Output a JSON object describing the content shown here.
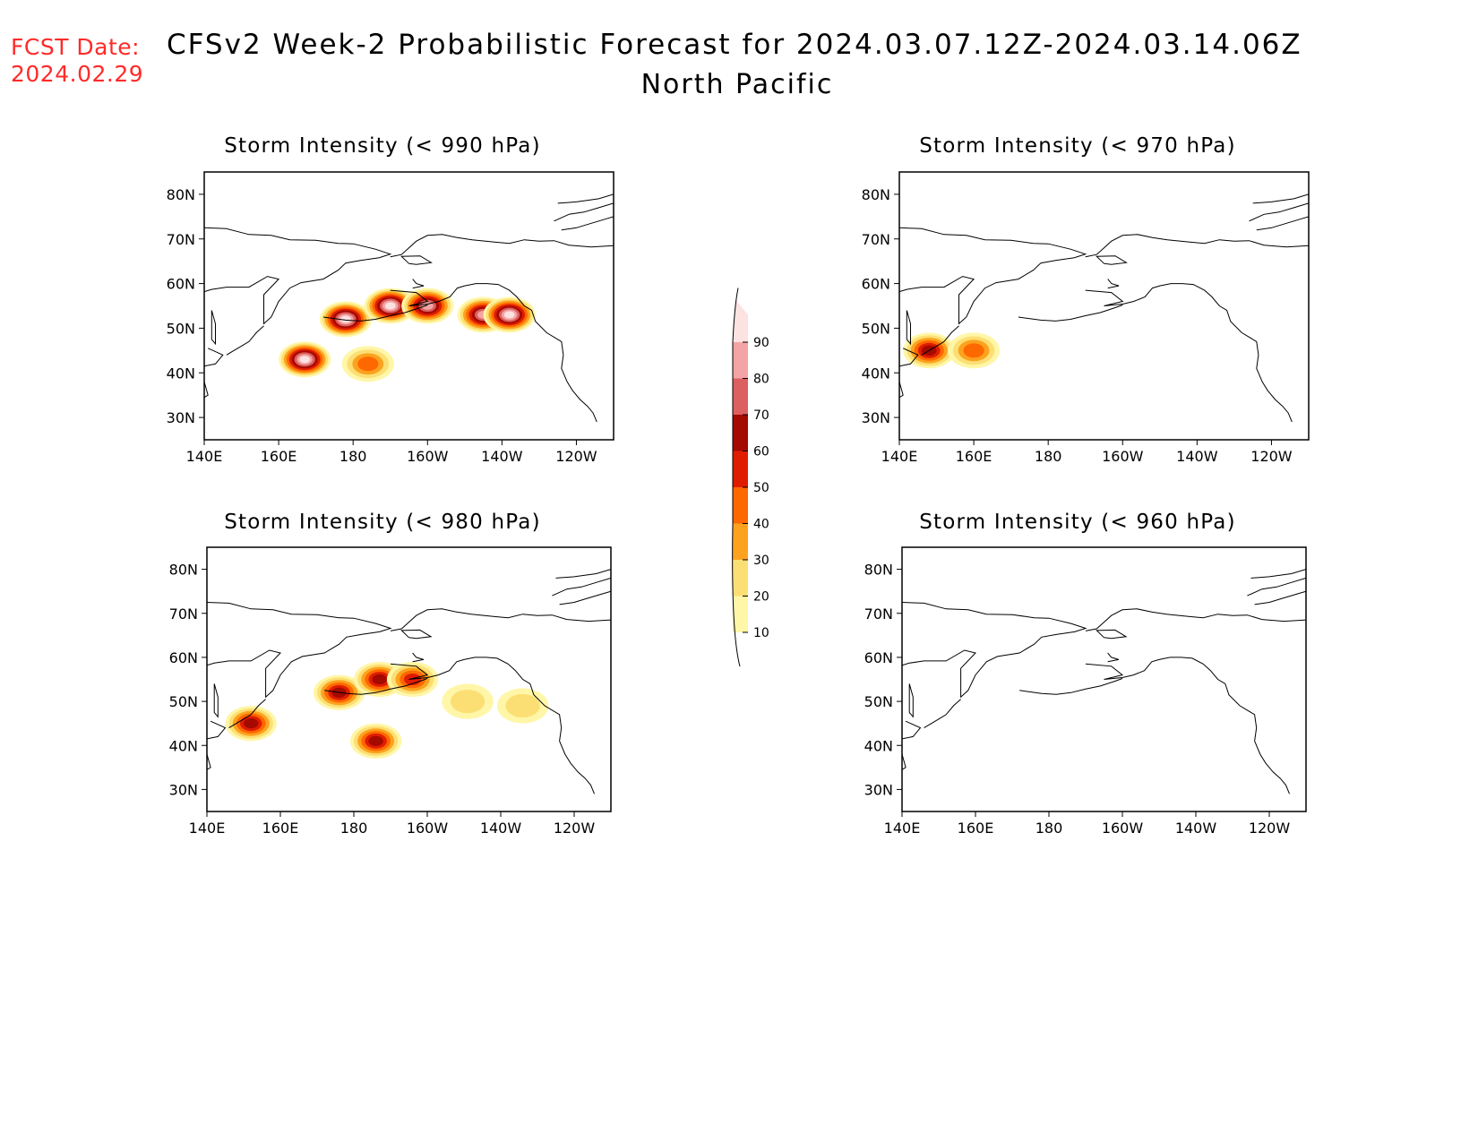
{
  "fcst_date": {
    "label": "FCST Date:",
    "value": "2024.02.29"
  },
  "title": "CFSv2 Week-2 Probabilistic Forecast for 2024.03.07.12Z-2024.03.14.06Z",
  "subtitle": "North Pacific",
  "panels": [
    {
      "id": "p990",
      "title": "Storm Intensity (< 990 hPa)"
    },
    {
      "id": "p970",
      "title": "Storm Intensity (< 970 hPa)"
    },
    {
      "id": "p980",
      "title": "Storm Intensity (< 980 hPa)"
    },
    {
      "id": "p960",
      "title": "Storm Intensity (< 960 hPa)"
    }
  ],
  "axes": {
    "lon_ticks": [
      "140E",
      "160E",
      "180",
      "160W",
      "140W",
      "120W"
    ],
    "lat_ticks": [
      "80N",
      "70N",
      "60N",
      "50N",
      "40N",
      "30N"
    ],
    "lon_range_east": [
      140,
      250
    ],
    "lat_range": [
      25,
      85
    ]
  },
  "colorbar": {
    "levels": [
      "10",
      "20",
      "30",
      "40",
      "50",
      "60",
      "70",
      "80",
      "90"
    ],
    "colors": [
      "#fff6a8",
      "#fcdf74",
      "#fda21e",
      "#fe6800",
      "#e01c00",
      "#a40a00",
      "#dd6060",
      "#f4a4a4",
      "#fde2e2"
    ]
  },
  "chart_data": [
    {
      "type": "heatmap",
      "title": "Storm Intensity (< 990 hPa)",
      "units": "probability (%)",
      "blobs": [
        {
          "lon": 167,
          "lat": 43,
          "max_prob": 90
        },
        {
          "lon": 178,
          "lat": 52,
          "max_prob": 90
        },
        {
          "lon": 190,
          "lat": 55,
          "max_prob": 90
        },
        {
          "lon": 200,
          "lat": 55,
          "max_prob": 80
        },
        {
          "lon": 215,
          "lat": 53,
          "max_prob": 80
        },
        {
          "lon": 222,
          "lat": 53,
          "max_prob": 90
        },
        {
          "lon": 184,
          "lat": 42,
          "max_prob": 40
        }
      ]
    },
    {
      "type": "heatmap",
      "title": "Storm Intensity (< 970 hPa)",
      "units": "probability (%)",
      "blobs": [
        {
          "lon": 148,
          "lat": 45,
          "max_prob": 60
        },
        {
          "lon": 160,
          "lat": 45,
          "max_prob": 40
        }
      ]
    },
    {
      "type": "heatmap",
      "title": "Storm Intensity (< 980 hPa)",
      "units": "probability (%)",
      "blobs": [
        {
          "lon": 152,
          "lat": 45,
          "max_prob": 60
        },
        {
          "lon": 176,
          "lat": 52,
          "max_prob": 60
        },
        {
          "lon": 187,
          "lat": 55,
          "max_prob": 60
        },
        {
          "lon": 196,
          "lat": 55,
          "max_prob": 50
        },
        {
          "lon": 211,
          "lat": 50,
          "max_prob": 20
        },
        {
          "lon": 226,
          "lat": 49,
          "max_prob": 20
        },
        {
          "lon": 186,
          "lat": 41,
          "max_prob": 60
        }
      ]
    },
    {
      "type": "heatmap",
      "title": "Storm Intensity (< 960 hPa)",
      "units": "probability (%)",
      "blobs": []
    }
  ]
}
